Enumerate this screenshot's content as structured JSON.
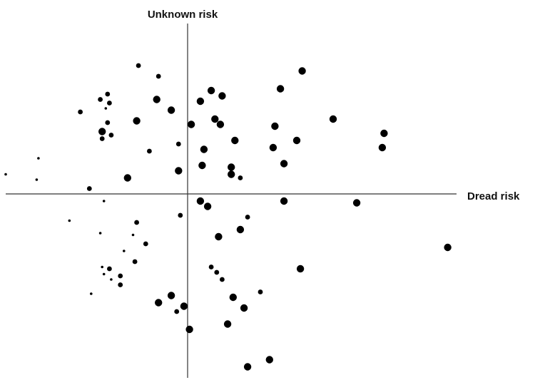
{
  "chart_data": {
    "type": "scatter",
    "title": "",
    "xlabel": "Dread risk",
    "ylabel": "Unknown risk",
    "xlim": [
      -1.0,
      1.46
    ],
    "ylim": [
      -1.0,
      0.94
    ],
    "grid": false,
    "legend": "none",
    "point_color": "#000000",
    "series": [
      {
        "name": "",
        "points": [
          {
            "x": -0.27,
            "y": 0.72,
            "size": 2
          },
          {
            "x": -0.16,
            "y": 0.66,
            "size": 2
          },
          {
            "x": 0.63,
            "y": 0.69,
            "size": 3
          },
          {
            "x": 0.51,
            "y": 0.59,
            "size": 3
          },
          {
            "x": -0.44,
            "y": 0.56,
            "size": 2
          },
          {
            "x": -0.48,
            "y": 0.53,
            "size": 2
          },
          {
            "x": -0.43,
            "y": 0.51,
            "size": 2
          },
          {
            "x": -0.45,
            "y": 0.48,
            "size": 1
          },
          {
            "x": -0.17,
            "y": 0.53,
            "size": 3
          },
          {
            "x": 0.13,
            "y": 0.58,
            "size": 3
          },
          {
            "x": 0.19,
            "y": 0.55,
            "size": 3
          },
          {
            "x": 0.07,
            "y": 0.52,
            "size": 3
          },
          {
            "x": -0.59,
            "y": 0.46,
            "size": 2
          },
          {
            "x": -0.09,
            "y": 0.47,
            "size": 3
          },
          {
            "x": -0.28,
            "y": 0.41,
            "size": 3
          },
          {
            "x": -0.44,
            "y": 0.4,
            "size": 2
          },
          {
            "x": 0.15,
            "y": 0.42,
            "size": 3
          },
          {
            "x": 0.18,
            "y": 0.39,
            "size": 3
          },
          {
            "x": 0.02,
            "y": 0.39,
            "size": 3
          },
          {
            "x": 0.8,
            "y": 0.42,
            "size": 3
          },
          {
            "x": 0.48,
            "y": 0.38,
            "size": 3
          },
          {
            "x": -0.47,
            "y": 0.35,
            "size": 3
          },
          {
            "x": -0.42,
            "y": 0.33,
            "size": 2
          },
          {
            "x": -0.47,
            "y": 0.31,
            "size": 2
          },
          {
            "x": 1.08,
            "y": 0.34,
            "size": 3
          },
          {
            "x": 0.26,
            "y": 0.3,
            "size": 3
          },
          {
            "x": 0.6,
            "y": 0.3,
            "size": 3
          },
          {
            "x": -0.05,
            "y": 0.28,
            "size": 2
          },
          {
            "x": 0.47,
            "y": 0.26,
            "size": 3
          },
          {
            "x": 1.07,
            "y": 0.26,
            "size": 3
          },
          {
            "x": 0.09,
            "y": 0.25,
            "size": 3
          },
          {
            "x": -0.21,
            "y": 0.24,
            "size": 2
          },
          {
            "x": -0.82,
            "y": 0.2,
            "size": 1
          },
          {
            "x": 0.08,
            "y": 0.16,
            "size": 3
          },
          {
            "x": 0.24,
            "y": 0.15,
            "size": 3
          },
          {
            "x": 0.53,
            "y": 0.17,
            "size": 3
          },
          {
            "x": -0.05,
            "y": 0.13,
            "size": 3
          },
          {
            "x": 0.24,
            "y": 0.11,
            "size": 3
          },
          {
            "x": 0.29,
            "y": 0.09,
            "size": 2
          },
          {
            "x": -1.0,
            "y": 0.11,
            "size": 1
          },
          {
            "x": -0.83,
            "y": 0.08,
            "size": 1
          },
          {
            "x": -0.33,
            "y": 0.09,
            "size": 3
          },
          {
            "x": -0.54,
            "y": 0.03,
            "size": 2
          },
          {
            "x": 0.07,
            "y": -0.04,
            "size": 3
          },
          {
            "x": 0.11,
            "y": -0.07,
            "size": 3
          },
          {
            "x": 0.53,
            "y": -0.04,
            "size": 3
          },
          {
            "x": 0.93,
            "y": -0.05,
            "size": 3
          },
          {
            "x": -0.46,
            "y": -0.04,
            "size": 1
          },
          {
            "x": -0.04,
            "y": -0.12,
            "size": 2
          },
          {
            "x": 0.33,
            "y": -0.13,
            "size": 2
          },
          {
            "x": -0.65,
            "y": -0.15,
            "size": 1
          },
          {
            "x": -0.28,
            "y": -0.16,
            "size": 2
          },
          {
            "x": 0.29,
            "y": -0.2,
            "size": 3
          },
          {
            "x": -0.48,
            "y": -0.22,
            "size": 1
          },
          {
            "x": -0.3,
            "y": -0.23,
            "size": 1
          },
          {
            "x": 0.17,
            "y": -0.24,
            "size": 3
          },
          {
            "x": -0.23,
            "y": -0.28,
            "size": 2
          },
          {
            "x": 1.43,
            "y": -0.3,
            "size": 3
          },
          {
            "x": -0.35,
            "y": -0.32,
            "size": 1
          },
          {
            "x": -0.29,
            "y": -0.38,
            "size": 2
          },
          {
            "x": -0.47,
            "y": -0.41,
            "size": 1
          },
          {
            "x": -0.43,
            "y": -0.42,
            "size": 2
          },
          {
            "x": 0.13,
            "y": -0.41,
            "size": 2
          },
          {
            "x": 0.16,
            "y": -0.44,
            "size": 2
          },
          {
            "x": 0.62,
            "y": -0.42,
            "size": 3
          },
          {
            "x": -0.46,
            "y": -0.45,
            "size": 1
          },
          {
            "x": -0.37,
            "y": -0.46,
            "size": 2
          },
          {
            "x": -0.42,
            "y": -0.48,
            "size": 1
          },
          {
            "x": 0.19,
            "y": -0.48,
            "size": 2
          },
          {
            "x": -0.37,
            "y": -0.51,
            "size": 2
          },
          {
            "x": 0.4,
            "y": -0.55,
            "size": 2
          },
          {
            "x": -0.53,
            "y": -0.56,
            "size": 1
          },
          {
            "x": -0.09,
            "y": -0.57,
            "size": 3
          },
          {
            "x": 0.25,
            "y": -0.58,
            "size": 3
          },
          {
            "x": -0.16,
            "y": -0.61,
            "size": 3
          },
          {
            "x": -0.02,
            "y": -0.63,
            "size": 3
          },
          {
            "x": 0.31,
            "y": -0.64,
            "size": 3
          },
          {
            "x": -0.06,
            "y": -0.66,
            "size": 2
          },
          {
            "x": 0.22,
            "y": -0.73,
            "size": 3
          },
          {
            "x": 0.01,
            "y": -0.76,
            "size": 3
          },
          {
            "x": 0.45,
            "y": -0.93,
            "size": 3
          },
          {
            "x": 0.33,
            "y": -0.97,
            "size": 3
          }
        ]
      }
    ]
  }
}
